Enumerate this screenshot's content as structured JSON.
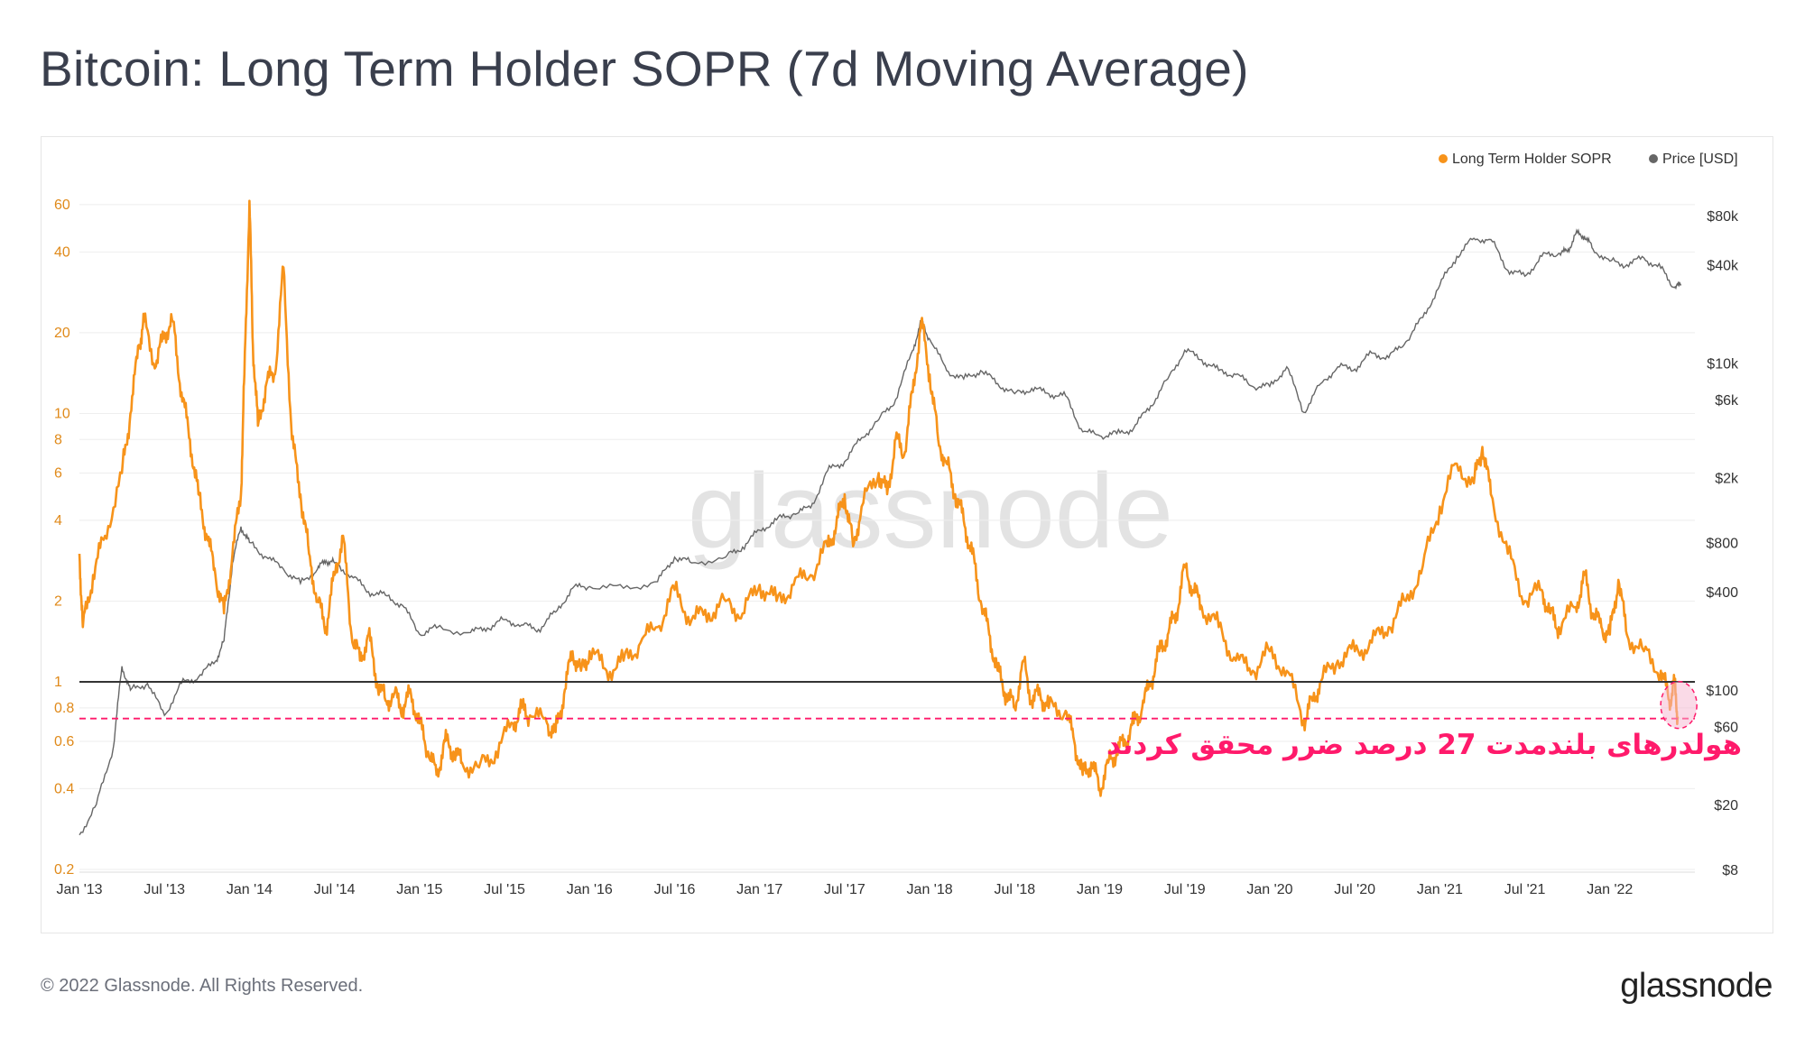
{
  "title": "Bitcoin: Long Term Holder SOPR (7d Moving Average)",
  "footer": "© 2022 Glassnode. All Rights Reserved.",
  "brand": "glassnode",
  "watermark": "glassnode",
  "colors": {
    "sopr": "#f7931a",
    "price": "#666666",
    "ref_line": "#333333",
    "threshold": "#ff1a6b",
    "annotation": "#ff1a6b",
    "highlight": "#f6b6cf"
  },
  "chart_data": {
    "type": "line",
    "title": "Bitcoin: Long Term Holder SOPR (7d Moving Average)",
    "legend": {
      "position": "top-right",
      "entries": [
        "Long Term Holder SOPR",
        "Price [USD]"
      ]
    },
    "x_ticks": [
      "Jan '13",
      "Jul '13",
      "Jan '14",
      "Jul '14",
      "Jan '15",
      "Jul '15",
      "Jan '16",
      "Jul '16",
      "Jan '17",
      "Jul '17",
      "Jan '18",
      "Jul '18",
      "Jan '19",
      "Jul '19",
      "Jan '20",
      "Jul '20",
      "Jan '21",
      "Jul '21",
      "Jan '22"
    ],
    "x_range": [
      2013.0,
      2022.5
    ],
    "y_left": {
      "label": "Long Term Holder SOPR",
      "scale": "log",
      "range": [
        0.2,
        70
      ],
      "ticks": [
        "60",
        "40",
        "20",
        "10",
        "8",
        "6",
        "4",
        "2",
        "1",
        "0.8",
        "0.6",
        "0.4",
        "0.2"
      ]
    },
    "y_right": {
      "label": "Price [USD]",
      "scale": "log",
      "range": [
        8,
        120000
      ],
      "ticks": [
        "$80k",
        "$40k",
        "$10k",
        "$6k",
        "$2k",
        "$800",
        "$400",
        "$100",
        "$60",
        "$20",
        "$8"
      ]
    },
    "reference_line": {
      "value": 1
    },
    "threshold_line": {
      "value": 0.73
    },
    "annotation": "هولدرهای بلندمدت 27 درصد ضرر محقق کردند",
    "series": [
      {
        "name": "Long Term Holder SOPR",
        "axis": "left",
        "points": [
          [
            2013.0,
            3
          ],
          [
            2013.02,
            1.6
          ],
          [
            2013.08,
            2.5
          ],
          [
            2013.15,
            3.5
          ],
          [
            2013.25,
            6
          ],
          [
            2013.3,
            10
          ],
          [
            2013.35,
            18
          ],
          [
            2013.38,
            22
          ],
          [
            2013.45,
            15
          ],
          [
            2013.5,
            20
          ],
          [
            2013.55,
            22
          ],
          [
            2013.6,
            12
          ],
          [
            2013.65,
            8
          ],
          [
            2013.7,
            5
          ],
          [
            2013.75,
            3.5
          ],
          [
            2013.8,
            2.5
          ],
          [
            2013.85,
            1.8
          ],
          [
            2013.9,
            3
          ],
          [
            2013.95,
            5
          ],
          [
            2013.97,
            14
          ],
          [
            2014.0,
            62
          ],
          [
            2014.02,
            18
          ],
          [
            2014.05,
            9
          ],
          [
            2014.1,
            13
          ],
          [
            2014.15,
            14
          ],
          [
            2014.2,
            35
          ],
          [
            2014.25,
            8
          ],
          [
            2014.3,
            5
          ],
          [
            2014.35,
            3
          ],
          [
            2014.4,
            2
          ],
          [
            2014.45,
            1.6
          ],
          [
            2014.5,
            2.5
          ],
          [
            2014.55,
            3.5
          ],
          [
            2014.6,
            1.5
          ],
          [
            2014.65,
            1.2
          ],
          [
            2014.7,
            1.5
          ],
          [
            2014.75,
            1.0
          ],
          [
            2014.8,
            0.85
          ],
          [
            2014.85,
            0.9
          ],
          [
            2014.9,
            0.8
          ],
          [
            2014.95,
            0.9
          ],
          [
            2015.0,
            0.7
          ],
          [
            2015.05,
            0.55
          ],
          [
            2015.1,
            0.45
          ],
          [
            2015.15,
            0.6
          ],
          [
            2015.2,
            0.55
          ],
          [
            2015.25,
            0.5
          ],
          [
            2015.35,
            0.48
          ],
          [
            2015.45,
            0.55
          ],
          [
            2015.55,
            0.7
          ],
          [
            2015.6,
            0.8
          ],
          [
            2015.65,
            0.75
          ],
          [
            2015.75,
            0.7
          ],
          [
            2015.8,
            0.65
          ],
          [
            2015.85,
            0.9
          ],
          [
            2015.9,
            1.3
          ],
          [
            2015.95,
            1.1
          ],
          [
            2016.0,
            1.3
          ],
          [
            2016.1,
            1.1
          ],
          [
            2016.2,
            1.2
          ],
          [
            2016.3,
            1.4
          ],
          [
            2016.4,
            1.6
          ],
          [
            2016.5,
            2.2
          ],
          [
            2016.6,
            1.7
          ],
          [
            2016.7,
            1.8
          ],
          [
            2016.8,
            2.0
          ],
          [
            2016.9,
            1.8
          ],
          [
            2017.0,
            2.3
          ],
          [
            2017.1,
            2.0
          ],
          [
            2017.2,
            2.3
          ],
          [
            2017.3,
            2.5
          ],
          [
            2017.4,
            3.2
          ],
          [
            2017.45,
            3.8
          ],
          [
            2017.5,
            5
          ],
          [
            2017.55,
            3.2
          ],
          [
            2017.6,
            4.5
          ],
          [
            2017.7,
            6
          ],
          [
            2017.75,
            5
          ],
          [
            2017.8,
            8
          ],
          [
            2017.85,
            7
          ],
          [
            2017.9,
            12
          ],
          [
            2017.95,
            22
          ],
          [
            2018.0,
            14
          ],
          [
            2018.05,
            8
          ],
          [
            2018.1,
            6.5
          ],
          [
            2018.15,
            5
          ],
          [
            2018.2,
            4
          ],
          [
            2018.25,
            3
          ],
          [
            2018.3,
            2
          ],
          [
            2018.35,
            1.5
          ],
          [
            2018.4,
            1.1
          ],
          [
            2018.45,
            0.9
          ],
          [
            2018.5,
            0.8
          ],
          [
            2018.55,
            1.2
          ],
          [
            2018.6,
            0.85
          ],
          [
            2018.65,
            0.9
          ],
          [
            2018.7,
            0.8
          ],
          [
            2018.8,
            0.78
          ],
          [
            2018.85,
            0.6
          ],
          [
            2018.9,
            0.45
          ],
          [
            2018.95,
            0.5
          ],
          [
            2019.0,
            0.4
          ],
          [
            2019.05,
            0.5
          ],
          [
            2019.1,
            0.55
          ],
          [
            2019.15,
            0.6
          ],
          [
            2019.2,
            0.7
          ],
          [
            2019.25,
            0.8
          ],
          [
            2019.3,
            1.0
          ],
          [
            2019.35,
            1.3
          ],
          [
            2019.4,
            1.5
          ],
          [
            2019.45,
            1.8
          ],
          [
            2019.5,
            2.7
          ],
          [
            2019.55,
            2.2
          ],
          [
            2019.6,
            1.9
          ],
          [
            2019.7,
            1.6
          ],
          [
            2019.8,
            1.2
          ],
          [
            2019.9,
            1.1
          ],
          [
            2020.0,
            1.3
          ],
          [
            2020.1,
            1.1
          ],
          [
            2020.2,
            0.72
          ],
          [
            2020.25,
            0.85
          ],
          [
            2020.3,
            1.0
          ],
          [
            2020.4,
            1.2
          ],
          [
            2020.5,
            1.3
          ],
          [
            2020.6,
            1.4
          ],
          [
            2020.7,
            1.6
          ],
          [
            2020.8,
            2.0
          ],
          [
            2020.9,
            2.7
          ],
          [
            2021.0,
            4.5
          ],
          [
            2021.1,
            6.5
          ],
          [
            2021.2,
            5.5
          ],
          [
            2021.25,
            7.5
          ],
          [
            2021.3,
            5
          ],
          [
            2021.4,
            3
          ],
          [
            2021.5,
            2.0
          ],
          [
            2021.6,
            2.2
          ],
          [
            2021.65,
            1.8
          ],
          [
            2021.7,
            1.6
          ],
          [
            2021.8,
            1.9
          ],
          [
            2021.85,
            2.5
          ],
          [
            2021.9,
            1.8
          ],
          [
            2021.95,
            1.6
          ],
          [
            2022.0,
            1.5
          ],
          [
            2022.05,
            2.4
          ],
          [
            2022.1,
            1.5
          ],
          [
            2022.2,
            1.3
          ],
          [
            2022.3,
            1.1
          ],
          [
            2022.35,
            0.85
          ],
          [
            2022.38,
            1.0
          ],
          [
            2022.4,
            0.73
          ]
        ]
      },
      {
        "name": "Price [USD]",
        "axis": "right",
        "points": [
          [
            2013.0,
            13
          ],
          [
            2013.1,
            20
          ],
          [
            2013.2,
            45
          ],
          [
            2013.25,
            140
          ],
          [
            2013.3,
            100
          ],
          [
            2013.4,
            110
          ],
          [
            2013.5,
            70
          ],
          [
            2013.6,
            110
          ],
          [
            2013.7,
            120
          ],
          [
            2013.8,
            150
          ],
          [
            2013.85,
            200
          ],
          [
            2013.9,
            600
          ],
          [
            2013.95,
            1000
          ],
          [
            2014.0,
            800
          ],
          [
            2014.1,
            650
          ],
          [
            2014.2,
            550
          ],
          [
            2014.3,
            450
          ],
          [
            2014.4,
            550
          ],
          [
            2014.45,
            620
          ],
          [
            2014.5,
            600
          ],
          [
            2014.6,
            500
          ],
          [
            2014.7,
            400
          ],
          [
            2014.8,
            380
          ],
          [
            2014.9,
            330
          ],
          [
            2015.0,
            220
          ],
          [
            2015.1,
            240
          ],
          [
            2015.3,
            225
          ],
          [
            2015.4,
            240
          ],
          [
            2015.5,
            270
          ],
          [
            2015.6,
            250
          ],
          [
            2015.7,
            235
          ],
          [
            2015.8,
            300
          ],
          [
            2015.9,
            420
          ],
          [
            2016.0,
            430
          ],
          [
            2016.2,
            420
          ],
          [
            2016.4,
            460
          ],
          [
            2016.5,
            650
          ],
          [
            2016.6,
            600
          ],
          [
            2016.8,
            650
          ],
          [
            2016.9,
            750
          ],
          [
            2017.0,
            950
          ],
          [
            2017.1,
            1100
          ],
          [
            2017.2,
            1200
          ],
          [
            2017.3,
            1300
          ],
          [
            2017.4,
            2200
          ],
          [
            2017.5,
            2500
          ],
          [
            2017.6,
            3500
          ],
          [
            2017.7,
            4500
          ],
          [
            2017.8,
            6000
          ],
          [
            2017.9,
            12000
          ],
          [
            2017.95,
            18000
          ],
          [
            2018.0,
            14000
          ],
          [
            2018.1,
            9000
          ],
          [
            2018.2,
            8000
          ],
          [
            2018.3,
            9000
          ],
          [
            2018.4,
            7500
          ],
          [
            2018.5,
            6500
          ],
          [
            2018.6,
            7000
          ],
          [
            2018.7,
            6500
          ],
          [
            2018.8,
            6300
          ],
          [
            2018.9,
            3800
          ],
          [
            2019.0,
            3600
          ],
          [
            2019.1,
            3700
          ],
          [
            2019.2,
            4000
          ],
          [
            2019.3,
            5500
          ],
          [
            2019.4,
            8000
          ],
          [
            2019.5,
            12000
          ],
          [
            2019.6,
            10500
          ],
          [
            2019.7,
            9000
          ],
          [
            2019.8,
            8500
          ],
          [
            2019.9,
            7200
          ],
          [
            2020.0,
            7200
          ],
          [
            2020.1,
            9500
          ],
          [
            2020.2,
            5000
          ],
          [
            2020.3,
            7500
          ],
          [
            2020.4,
            9500
          ],
          [
            2020.5,
            9200
          ],
          [
            2020.6,
            11500
          ],
          [
            2020.7,
            10800
          ],
          [
            2020.8,
            13500
          ],
          [
            2020.9,
            19000
          ],
          [
            2021.0,
            30000
          ],
          [
            2021.1,
            45000
          ],
          [
            2021.2,
            58000
          ],
          [
            2021.3,
            57000
          ],
          [
            2021.4,
            37000
          ],
          [
            2021.5,
            34000
          ],
          [
            2021.6,
            45000
          ],
          [
            2021.7,
            47000
          ],
          [
            2021.75,
            48000
          ],
          [
            2021.8,
            62000
          ],
          [
            2021.85,
            60000
          ],
          [
            2021.9,
            50000
          ],
          [
            2022.0,
            42000
          ],
          [
            2022.1,
            40000
          ],
          [
            2022.2,
            44000
          ],
          [
            2022.3,
            38000
          ],
          [
            2022.38,
            29000
          ],
          [
            2022.42,
            30000
          ]
        ]
      }
    ]
  }
}
